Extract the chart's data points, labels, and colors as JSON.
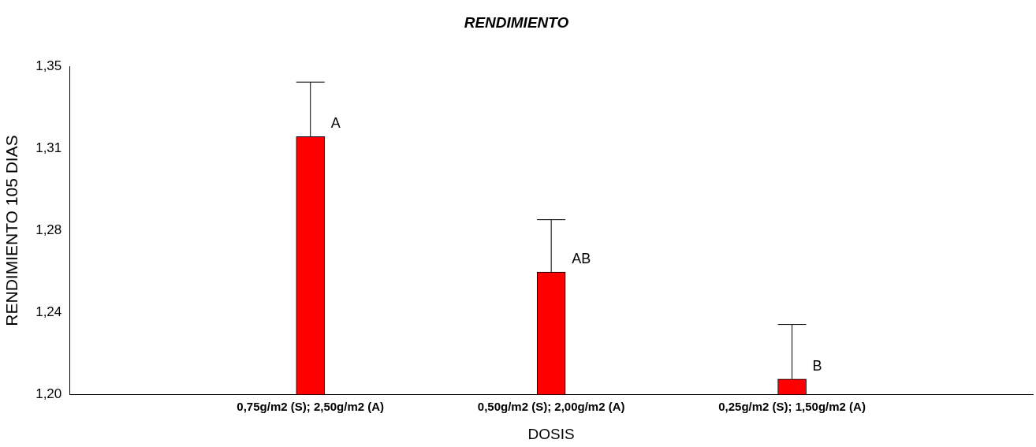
{
  "chart_data": {
    "type": "bar",
    "title": "RENDIMIENTO",
    "xlabel": "DOSIS",
    "ylabel": "RENDIMIENTO 105 DIAS",
    "categories": [
      "0,75g/m2 (S); 2,50g/m2 (A)",
      "0,50g/m2 (S); 2,00g/m2 (A)",
      "0,25g/m2 (S); 1,50g/m2 (A)"
    ],
    "values": [
      1.318,
      1.256,
      1.207
    ],
    "color": "#ff0000",
    "errors": [
      [
        1.318,
        1.343
      ],
      [
        1.256,
        1.28
      ],
      [
        1.207,
        1.232
      ]
    ],
    "ylim": [
      1.2,
      1.35
    ],
    "yticks": [
      {
        "value": 1.2,
        "label": "1,20"
      },
      {
        "value": 1.2375,
        "label": "1,24"
      },
      {
        "value": 1.275,
        "label": "1,28"
      },
      {
        "value": 1.3125,
        "label": "1,31"
      },
      {
        "value": 1.35,
        "label": "1,35"
      }
    ],
    "annotations": [
      {
        "text": "A",
        "x": "0,75g/m2 (S); 2,50g/m2 (A)",
        "y": 1.318
      },
      {
        "text": "AB",
        "x": "0,50g/m2 (S); 2,00g/m2 (A)",
        "y": 1.256
      },
      {
        "text": "B",
        "x": "0,25g/m2 (S); 1,50g/m2 (A)",
        "y": 1.207
      }
    ],
    "grid": false,
    "legend": false
  }
}
